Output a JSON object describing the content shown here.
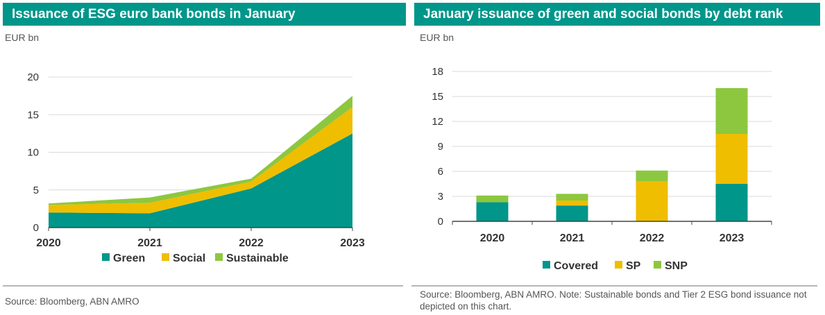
{
  "left": {
    "title": "Issuance of ESG euro bank bonds in January",
    "unit": "EUR bn",
    "source": "Source: Bloomberg, ABN AMRO",
    "legend": [
      "Green",
      "Social",
      "Sustainable"
    ]
  },
  "right": {
    "title": "January issuance of green and social bonds by debt rank",
    "unit": "EUR bn",
    "source": "Source: Bloomberg, ABN AMRO. Note: Sustainable bonds and Tier 2 ESG bond issuance not depicted on this chart.",
    "legend": [
      "Covered",
      "SP",
      "SNP"
    ]
  },
  "colors": {
    "green": "#00968a",
    "yellow": "#f0be00",
    "lime": "#8dc63f",
    "header": "#00968a"
  },
  "chart_data": [
    {
      "type": "area",
      "stacked": true,
      "title": "Issuance of ESG euro bank bonds in January",
      "ylabel": "EUR bn",
      "categories": [
        "2020",
        "2021",
        "2022",
        "2023"
      ],
      "ylim": [
        0,
        20
      ],
      "yticks": [
        0,
        5,
        10,
        15,
        20
      ],
      "grid": true,
      "legend_position": "bottom",
      "series": [
        {
          "name": "Green",
          "values": [
            2.0,
            1.9,
            5.2,
            12.5
          ],
          "color": "#00968a"
        },
        {
          "name": "Social",
          "values": [
            1.0,
            1.4,
            0.9,
            3.5
          ],
          "color": "#f0be00"
        },
        {
          "name": "Sustainable",
          "values": [
            0.2,
            0.7,
            0.4,
            1.5
          ],
          "color": "#8dc63f"
        }
      ]
    },
    {
      "type": "bar",
      "stacked": true,
      "title": "January issuance of green and social bonds by debt rank",
      "ylabel": "EUR bn",
      "categories": [
        "2020",
        "2021",
        "2022",
        "2023"
      ],
      "ylim": [
        0,
        18
      ],
      "yticks": [
        0,
        3,
        6,
        9,
        12,
        15,
        18
      ],
      "grid": true,
      "legend_position": "bottom",
      "series": [
        {
          "name": "Covered",
          "values": [
            2.3,
            1.9,
            0.0,
            4.5
          ],
          "color": "#00968a"
        },
        {
          "name": "SP",
          "values": [
            0.0,
            0.6,
            4.8,
            6.0
          ],
          "color": "#f0be00"
        },
        {
          "name": "SNP",
          "values": [
            0.8,
            0.8,
            1.3,
            5.5
          ],
          "color": "#8dc63f"
        }
      ]
    }
  ]
}
